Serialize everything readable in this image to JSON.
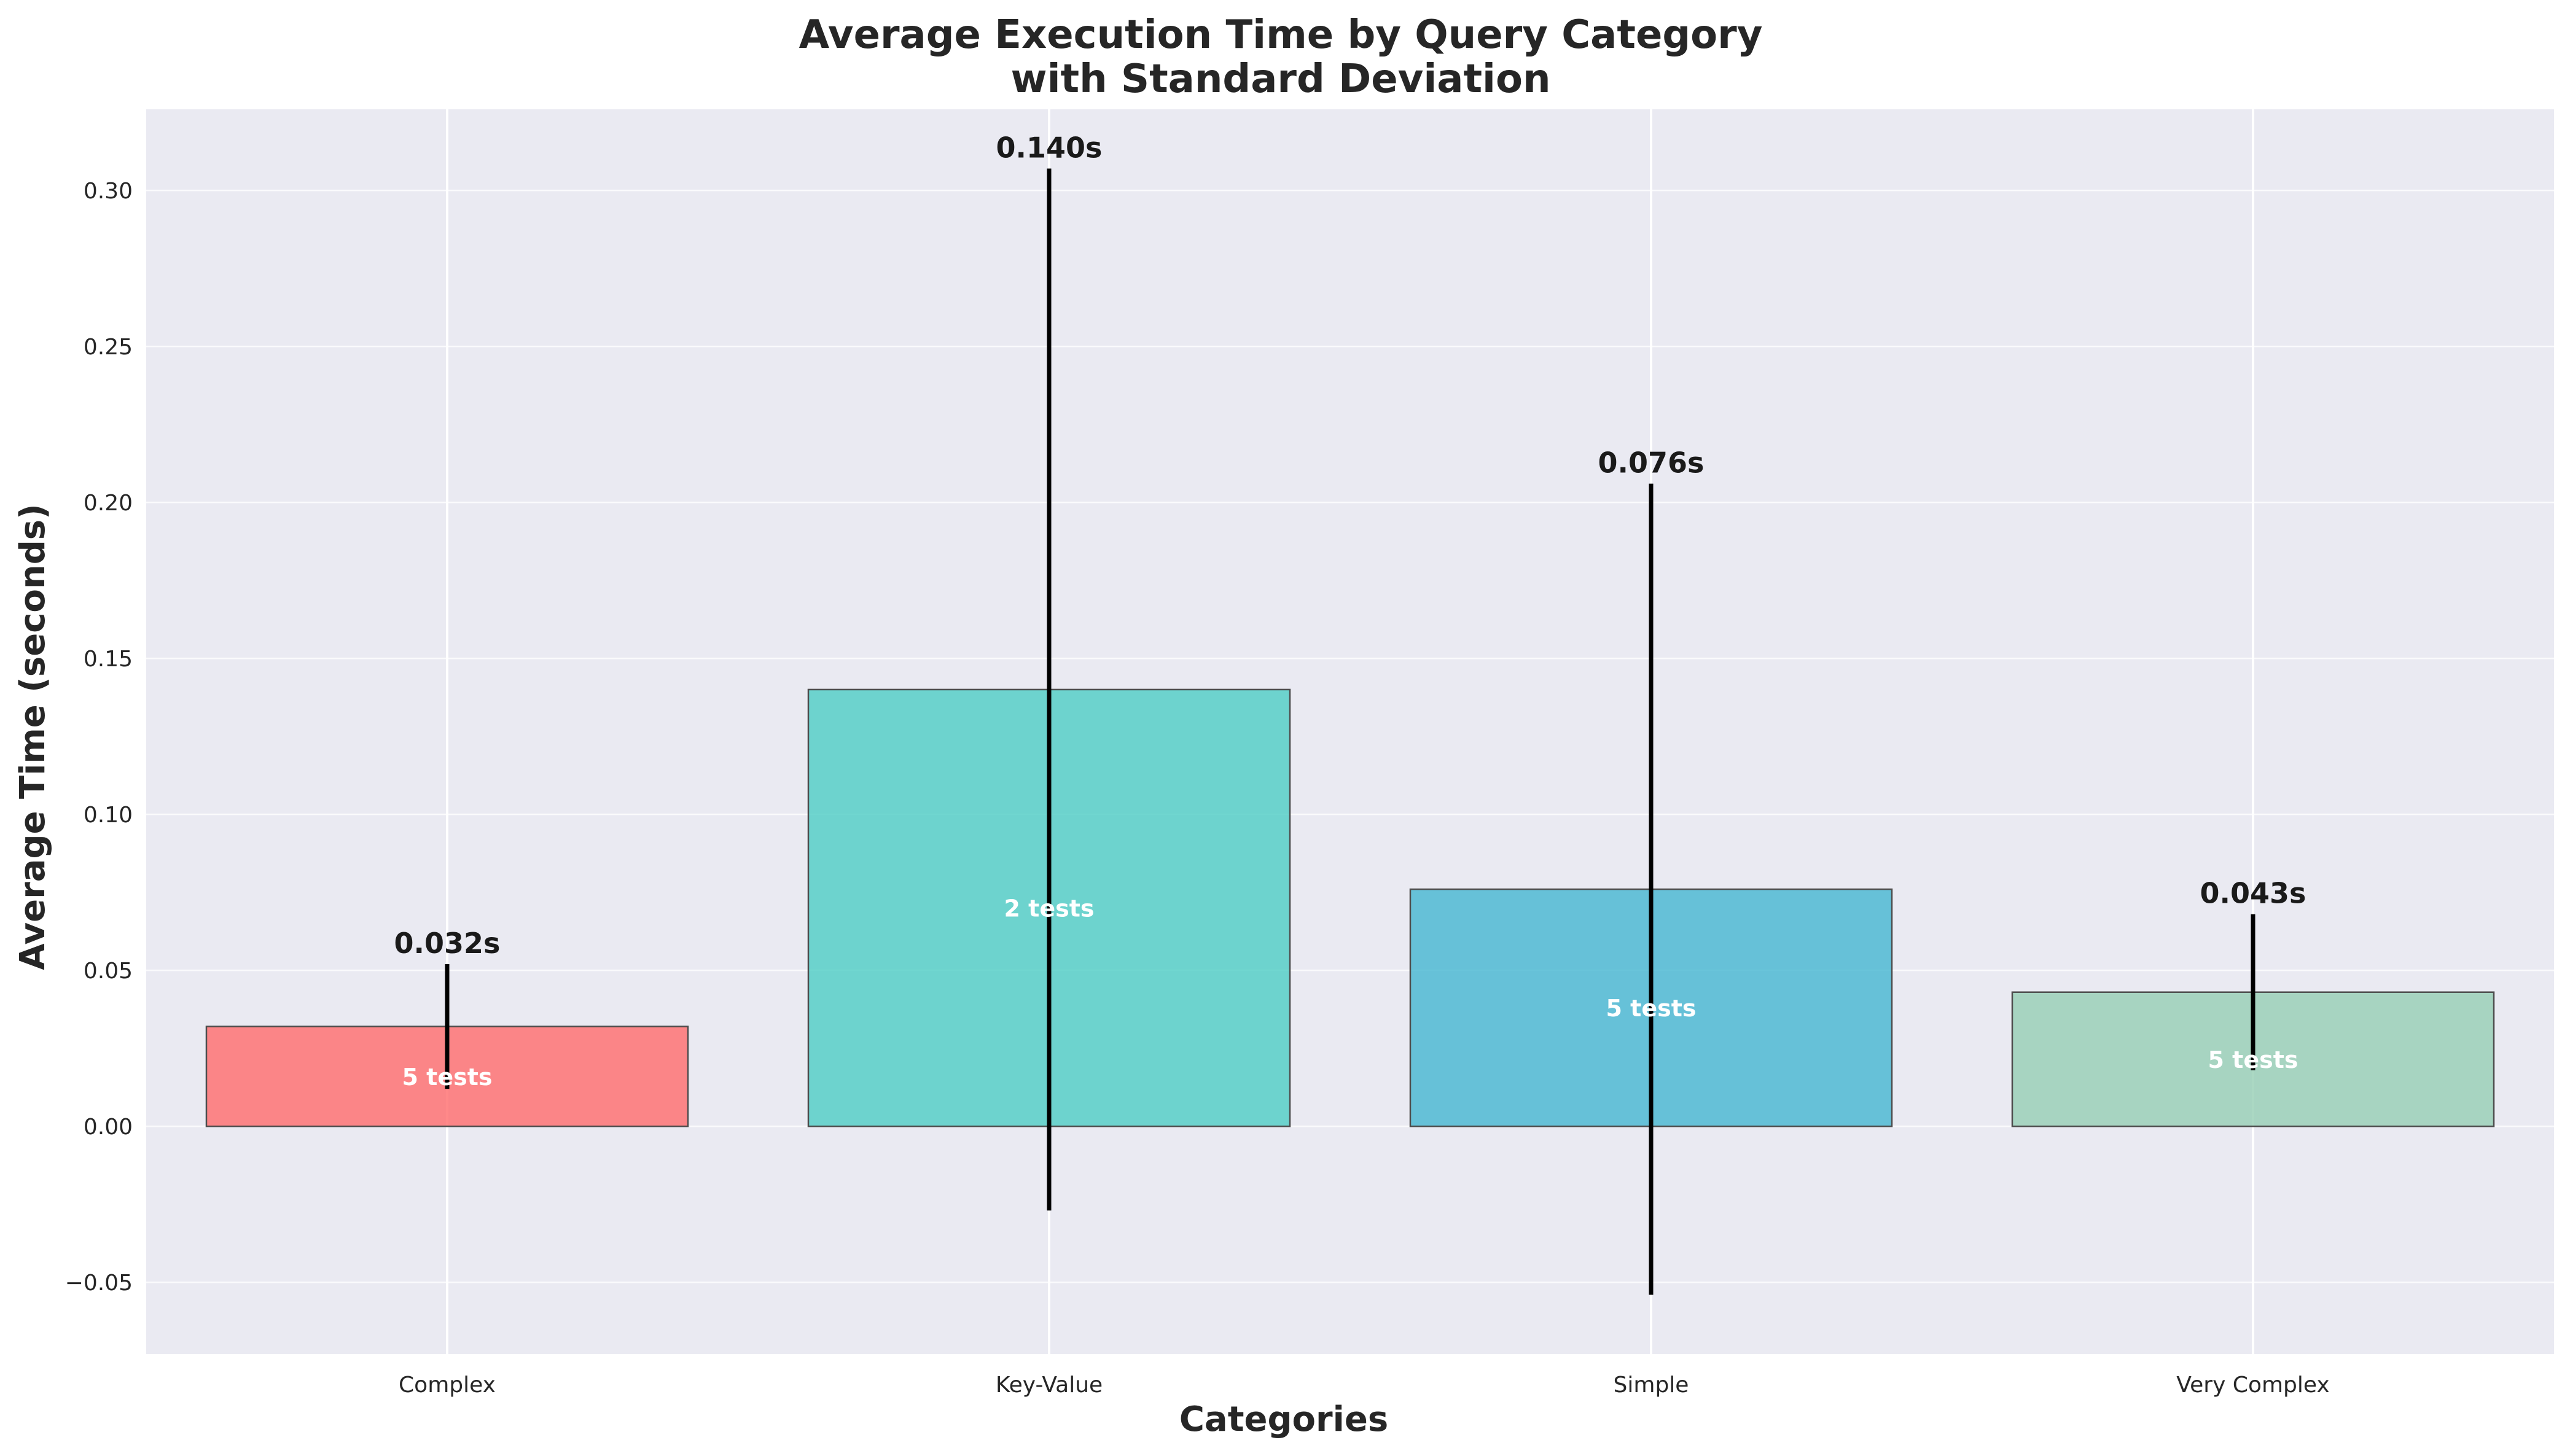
{
  "chart_data": {
    "type": "bar",
    "title": "Average Execution Time by Query Category",
    "subtitle": "with Standard Deviation",
    "xlabel": "Categories",
    "ylabel": "Average Time (seconds)",
    "categories": [
      "Complex",
      "Key-Value",
      "Simple",
      "Very Complex"
    ],
    "values": [
      0.032,
      0.14,
      0.076,
      0.043
    ],
    "std_dev": [
      0.02,
      0.167,
      0.13,
      0.025
    ],
    "value_labels": [
      "0.032s",
      "0.140s",
      "0.076s",
      "0.043s"
    ],
    "count_labels": [
      "5 tests",
      "2 tests",
      "5 tests",
      "5 tests"
    ],
    "colors": [
      "#ff6b6b",
      "#4ecdc4",
      "#45b7d1",
      "#96ceb4"
    ],
    "ylim": [
      -0.073,
      0.326
    ],
    "yticks": [
      -0.05,
      0.0,
      0.05,
      0.1,
      0.15,
      0.2,
      0.25,
      0.3
    ],
    "ytick_labels": [
      "−0.05",
      "0.00",
      "0.05",
      "0.10",
      "0.15",
      "0.20",
      "0.25",
      "0.30"
    ],
    "grid": true,
    "background": "#eaeaf2"
  }
}
